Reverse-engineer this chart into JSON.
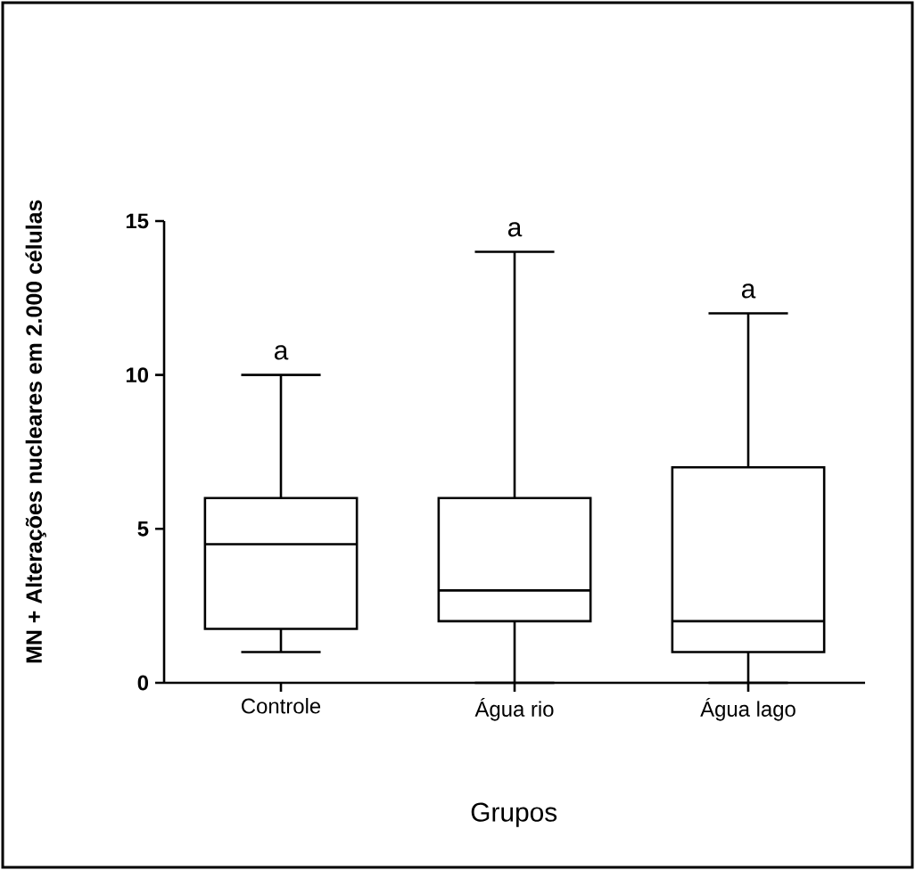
{
  "chart_data": {
    "type": "box",
    "xlabel": "Grupos",
    "ylabel": "MN + Alterações nucleares em 2.000 células",
    "categories": [
      "Controle",
      "Água rio",
      "Água lago"
    ],
    "boxes": [
      {
        "low": 1,
        "q1": 1.75,
        "median": 4.5,
        "q3": 6,
        "high": 10
      },
      {
        "low": 0,
        "q1": 2,
        "median": 3,
        "q3": 6,
        "high": 14
      },
      {
        "low": 0,
        "q1": 1,
        "median": 2,
        "q3": 7,
        "high": 12
      }
    ],
    "color": "#000000",
    "ylim": [
      0,
      15
    ],
    "yticks": [
      0,
      5,
      10,
      15
    ],
    "annotations": [
      "a",
      "a",
      "a"
    ]
  }
}
